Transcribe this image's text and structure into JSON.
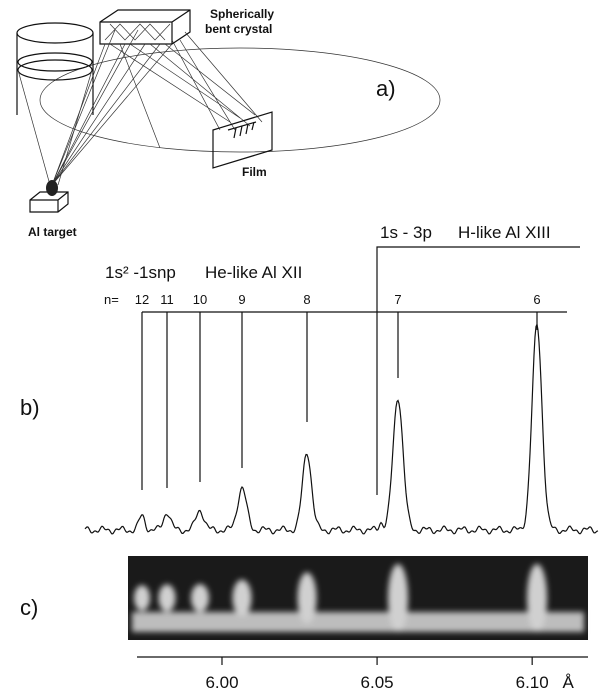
{
  "panel_a": {
    "label": "a)",
    "crystal_label_1": "Spherically",
    "crystal_label_2": "bent crystal",
    "film_label": "Film",
    "target_label": "Al target"
  },
  "panel_b": {
    "label": "b)",
    "he_like": {
      "transition": "1s² -1snp",
      "ion": "He-like Al XII",
      "n_prefix": "n=",
      "lines": [
        "12",
        "11",
        "10",
        "9",
        "8",
        "7",
        "6"
      ]
    },
    "h_like": {
      "transition": "1s - 3p",
      "ion": "H-like Al XIII"
    }
  },
  "panel_c": {
    "label": "c)"
  },
  "axis": {
    "xlim": [
      5.9726,
      6.118
    ],
    "ticks": [
      {
        "value": 6.0,
        "label": "6.00"
      },
      {
        "value": 6.05,
        "label": "6.05"
      },
      {
        "value": 6.1,
        "label": "6.10"
      }
    ],
    "unit": "Å"
  }
}
